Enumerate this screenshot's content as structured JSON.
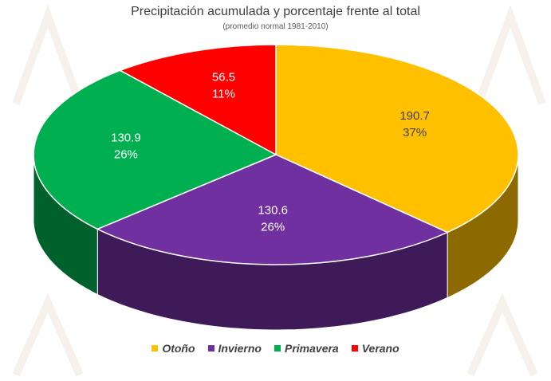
{
  "chart_data": {
    "type": "pie",
    "title": "Precipitación acumulada y porcentaje frente al total",
    "subtitle": "(promedio normal 1981-2010)",
    "categories": [
      "Otoño",
      "Invierno",
      "Primavera",
      "Verano"
    ],
    "values": [
      190.7,
      130.6,
      130.9,
      56.5
    ],
    "percent_labels": [
      "37%",
      "26%",
      "26%",
      "11%"
    ],
    "value_labels": [
      "190.7",
      "130.6",
      "130.9",
      "56.5"
    ],
    "colors": [
      "#FFC000",
      "#7030A0",
      "#00B050",
      "#FF0000"
    ],
    "legend_position": "bottom",
    "style": "3d"
  }
}
